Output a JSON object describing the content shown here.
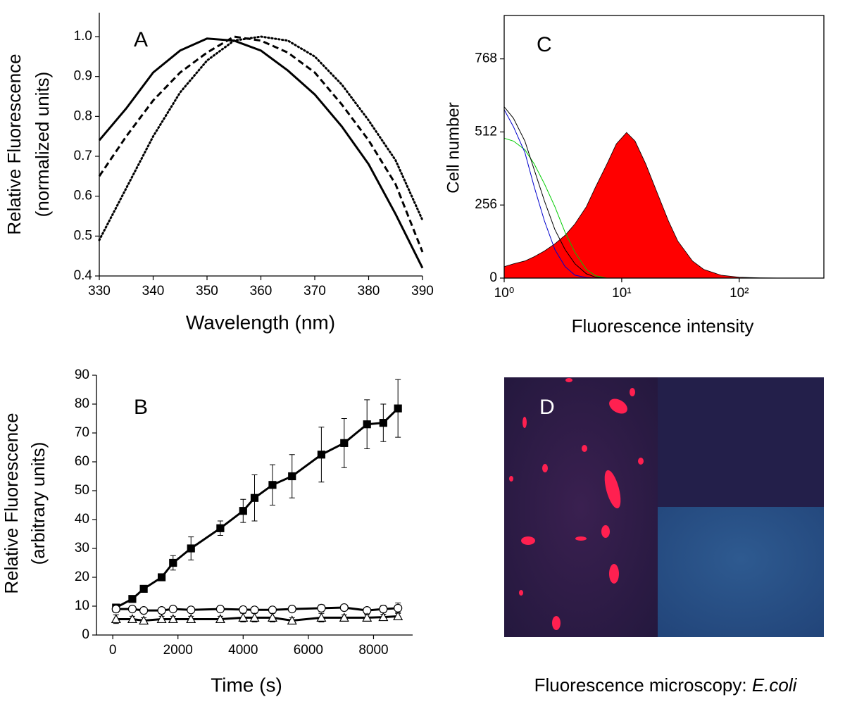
{
  "chart_data": [
    {
      "type": "line",
      "label": "A",
      "xlabel": "Wavelength (nm)",
      "ylabel": [
        "Relative Fluorescence",
        "(normalized units)"
      ],
      "x": [
        330,
        335,
        340,
        345,
        350,
        355,
        360,
        365,
        370,
        375,
        380,
        385,
        390
      ],
      "series": [
        {
          "color": "#000000",
          "dash": "solid",
          "values": [
            0.74,
            0.82,
            0.91,
            0.965,
            0.995,
            0.99,
            0.965,
            0.915,
            0.855,
            0.775,
            0.68,
            0.555,
            0.42
          ]
        },
        {
          "color": "#000000",
          "dash": "dashed",
          "values": [
            0.65,
            0.75,
            0.84,
            0.91,
            0.96,
            1.0,
            0.99,
            0.96,
            0.91,
            0.83,
            0.74,
            0.63,
            0.46
          ]
        },
        {
          "color": "#000000",
          "dash": "dotted",
          "values": [
            0.49,
            0.62,
            0.75,
            0.86,
            0.94,
            0.99,
            1.0,
            0.99,
            0.95,
            0.88,
            0.79,
            0.69,
            0.54
          ]
        }
      ],
      "xlim": [
        330,
        390
      ],
      "xticks": [
        330,
        340,
        350,
        360,
        370,
        380,
        390
      ],
      "ylim": [
        0.4,
        1.06
      ],
      "yticks": [
        0.4,
        0.5,
        0.6,
        0.7,
        0.8,
        0.9,
        {
          "value": 1.0,
          "label": "1.0"
        }
      ],
      "frame": false
    },
    {
      "type": "line",
      "label": "C",
      "xlabel": "Fluorescence intensity",
      "ylabel": [
        "Cell number"
      ],
      "xscale": "log",
      "x": [
        1,
        1.2,
        1.5,
        1.8,
        2.2,
        2.7,
        3.3,
        4,
        5,
        6,
        7.5,
        9,
        11,
        13,
        16,
        20,
        25,
        30,
        40,
        50,
        70,
        100,
        150,
        250,
        500
      ],
      "series": [
        {
          "color": "#ff0000",
          "area": true,
          "edge_color": "#000000",
          "values": [
            40,
            50,
            60,
            75,
            95,
            120,
            150,
            190,
            250,
            320,
            400,
            470,
            510,
            480,
            400,
            300,
            200,
            130,
            60,
            30,
            10,
            3,
            1,
            0,
            0
          ]
        },
        {
          "color": "#00cc00",
          "values": [
            490,
            480,
            450,
            400,
            330,
            250,
            160,
            90,
            30,
            8,
            0,
            0,
            0,
            0,
            0,
            0,
            0,
            0,
            0,
            0,
            0,
            0,
            0,
            0,
            0
          ]
        },
        {
          "color": "#000000",
          "values": [
            600,
            560,
            480,
            380,
            270,
            170,
            100,
            50,
            15,
            3,
            0,
            0,
            0,
            0,
            0,
            0,
            0,
            0,
            0,
            0,
            0,
            0,
            0,
            0,
            0
          ]
        },
        {
          "color": "#0000cc",
          "values": [
            590,
            530,
            440,
            320,
            200,
            100,
            40,
            10,
            2,
            0,
            0,
            0,
            0,
            0,
            0,
            0,
            0,
            0,
            0,
            0,
            0,
            0,
            0,
            0,
            0
          ]
        }
      ],
      "xlim": [
        1,
        525
      ],
      "xticks": [
        {
          "value": 1,
          "label": "10⁰"
        },
        {
          "value": 10,
          "label": "10¹"
        },
        {
          "value": 100,
          "label": "10²"
        }
      ],
      "ylim": [
        0,
        920
      ],
      "yticks": [
        0,
        256,
        512,
        768
      ],
      "frame": true
    },
    {
      "type": "line",
      "label": "B",
      "xlabel": "Time (s)",
      "ylabel": [
        "Relative Fluorescence",
        "(arbitrary units)"
      ],
      "x": [
        100,
        600,
        950,
        1500,
        1850,
        2400,
        3300,
        4000,
        4350,
        4900,
        5500,
        6400,
        7100,
        7800,
        8300,
        8750
      ],
      "series": [
        {
          "color": "#000000",
          "marker": "square",
          "marker_fill": "#000000",
          "values": [
            9.5,
            12.5,
            16,
            20,
            25,
            30,
            37,
            43,
            47.5,
            52,
            55,
            62.5,
            66.5,
            73,
            73.5,
            78.5
          ],
          "errors": [
            1,
            0.5,
            1,
            0.5,
            2.5,
            4,
            2.5,
            4,
            8,
            7,
            7.5,
            9.5,
            8.5,
            8.5,
            6.5,
            10
          ]
        },
        {
          "color": "#000000",
          "marker": "circle",
          "marker_fill": "#ffffff",
          "values": [
            9,
            9,
            8.5,
            8.5,
            9,
            8.7,
            9,
            8.8,
            8.7,
            8.7,
            9,
            9.3,
            9.5,
            8.5,
            9,
            9.3
          ],
          "errors": [
            1.2,
            0.8,
            0.8,
            1,
            0.8,
            0.8,
            0.8,
            0.8,
            0.8,
            0.8,
            0.8,
            1.2,
            1,
            0.8,
            1.2,
            1.8
          ]
        },
        {
          "color": "#000000",
          "marker": "triangle",
          "marker_fill": "#ffffff",
          "values": [
            5.5,
            5.5,
            5,
            5.5,
            5.5,
            5.5,
            5.5,
            6,
            6,
            6,
            5,
            6,
            6,
            6,
            6.2,
            6.5
          ],
          "errors": [
            1.5,
            1,
            1,
            1,
            1,
            1,
            1,
            1.5,
            1.5,
            1.5,
            1,
            1.5,
            1,
            1,
            1,
            1.2
          ]
        }
      ],
      "xlim": [
        -500,
        9200
      ],
      "xticks": [
        0,
        2000,
        4000,
        6000,
        8000
      ],
      "ylim": [
        0,
        90
      ],
      "yticks": [
        0,
        10,
        20,
        30,
        40,
        50,
        60,
        70,
        80,
        90
      ],
      "frame": false
    }
  ],
  "image_panel": {
    "label": "D",
    "caption": "Fluorescence microscopy: ",
    "caption_italic": "E.coli"
  }
}
